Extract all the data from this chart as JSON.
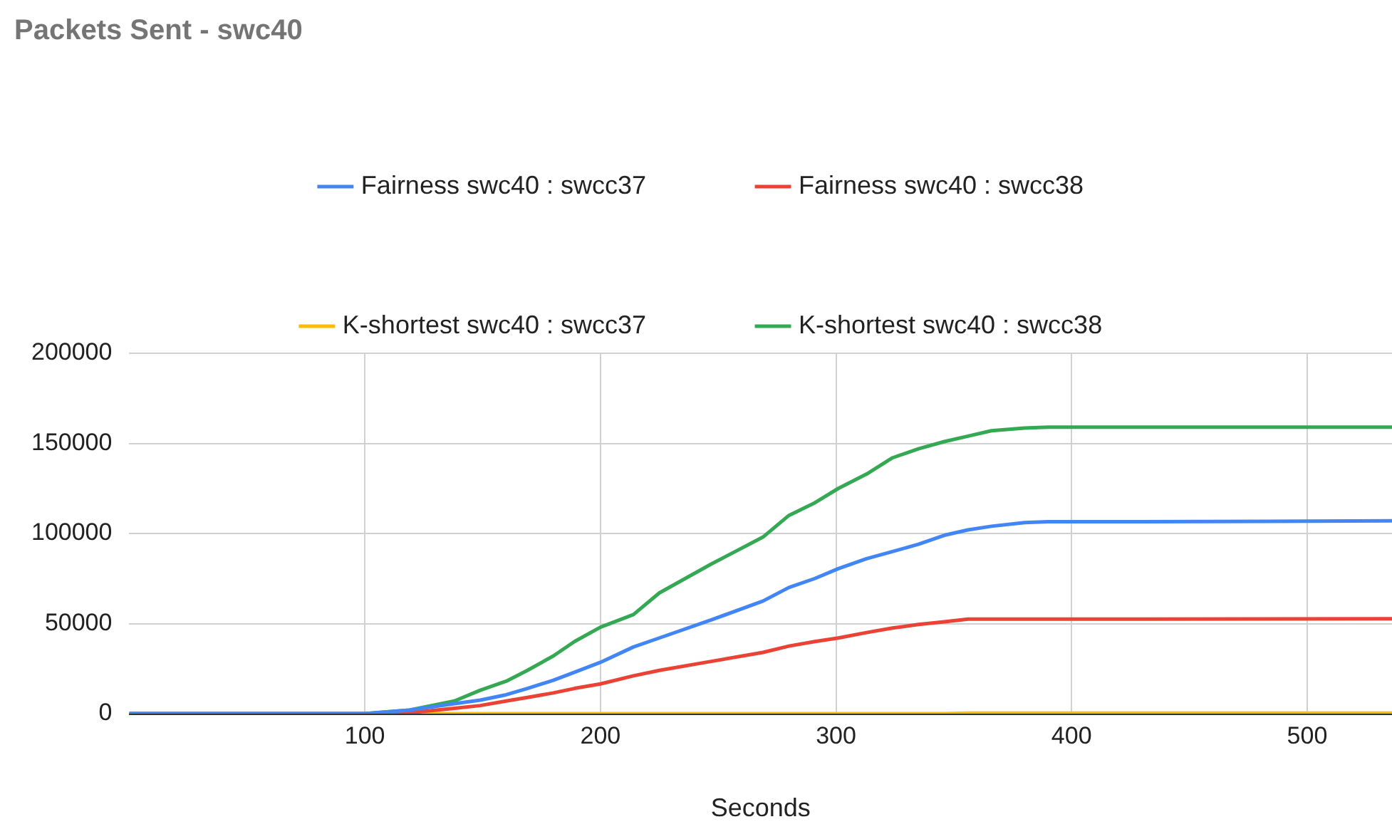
{
  "chart_data": {
    "type": "line",
    "title": "Packets Sent - swc40",
    "xlabel": "Seconds",
    "x": [
      0,
      100,
      119,
      138,
      149,
      160,
      169,
      180,
      189,
      200,
      214,
      225,
      247,
      269,
      280,
      291,
      301,
      313,
      324,
      335,
      346,
      356,
      366,
      380,
      390,
      429,
      536
    ],
    "series": [
      {
        "name": "Fairness swc40 : swcc37",
        "color": "#4285f4",
        "values": [
          0,
          0,
          2000,
          5500,
          7500,
          10500,
          14000,
          18500,
          23000,
          28500,
          37000,
          42000,
          52000,
          62500,
          70000,
          75000,
          80500,
          86000,
          90000,
          94000,
          99000,
          102000,
          104000,
          106000,
          106500,
          106500,
          107000
        ]
      },
      {
        "name": "Fairness swc40 : swcc38",
        "color": "#ea4335",
        "values": [
          0,
          0,
          500,
          3000,
          4500,
          7000,
          9000,
          11500,
          14000,
          16500,
          21000,
          24000,
          29000,
          34000,
          37500,
          40000,
          42000,
          45000,
          47500,
          49500,
          51000,
          52500,
          52500,
          52500,
          52500,
          52500,
          52700
        ]
      },
      {
        "name": "K-shortest swc40 : swcc37",
        "color": "#fbbc04",
        "values": [
          0,
          0,
          0,
          0,
          0,
          0,
          0,
          0,
          0,
          0,
          0,
          0,
          0,
          0,
          0,
          0,
          0,
          0,
          0,
          0,
          0,
          300,
          300,
          300,
          300,
          300,
          300
        ]
      },
      {
        "name": "K-shortest swc40 : swcc38",
        "color": "#34a853",
        "values": [
          0,
          0,
          2000,
          7000,
          13000,
          18000,
          24000,
          32000,
          40000,
          48000,
          55000,
          67000,
          83000,
          98000,
          110000,
          117000,
          125000,
          133000,
          142000,
          147000,
          151000,
          154000,
          157000,
          158500,
          159000,
          159000,
          159000
        ]
      }
    ],
    "xlim": [
      0,
      536
    ],
    "xticks": [
      100,
      200,
      300,
      400,
      500
    ],
    "ylim": [
      0,
      200000
    ],
    "yticks": [
      0,
      50000,
      100000,
      150000,
      200000
    ],
    "grid": true,
    "legend": "top",
    "marker": "none",
    "line_style": "solid"
  }
}
